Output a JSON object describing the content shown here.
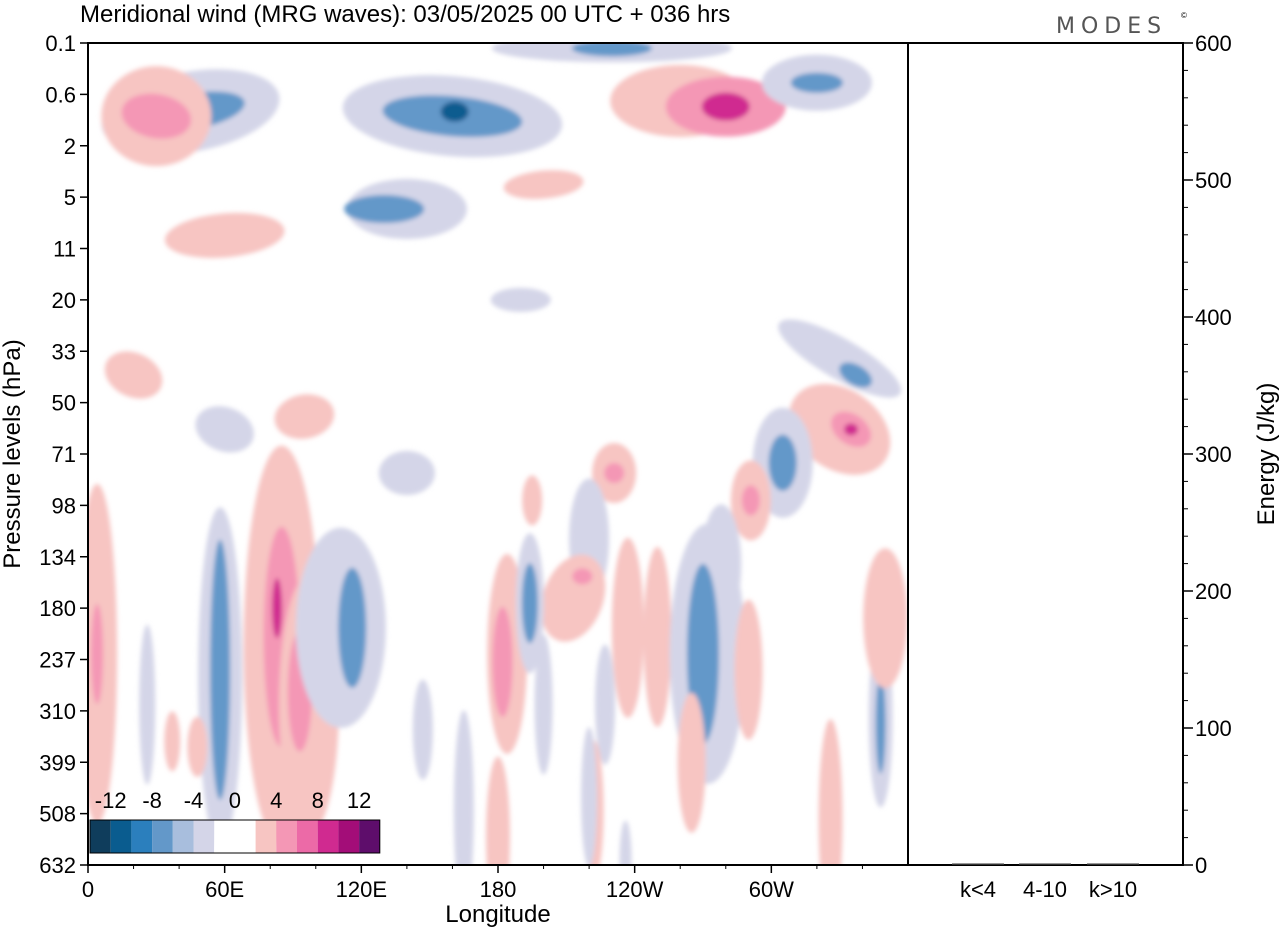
{
  "header": {
    "title": "Meridional wind (MRG waves):  03/05/2025  00 UTC  + 036 hrs",
    "logo": "MODES",
    "logo_mark": "©"
  },
  "chart_data": {
    "type": "heatmap",
    "title": "Meridional wind (MRG waves):  03/05/2025  00 UTC  + 036 hrs",
    "xlabel": "Longitude",
    "ylabel": "Pressure levels (hPa)",
    "x_ticks": [
      "0",
      "60E",
      "120E",
      "180",
      "120W",
      "60W"
    ],
    "x_tick_degrees": [
      0,
      60,
      120,
      180,
      240,
      300
    ],
    "xlim": [
      0,
      360
    ],
    "y_ticks": [
      "0.1",
      "0.6",
      "2",
      "5",
      "11",
      "20",
      "33",
      "50",
      "71",
      "98",
      "134",
      "180",
      "237",
      "310",
      "399",
      "508",
      "632"
    ],
    "colorbar": {
      "labels": [
        "-12",
        "-8",
        "-4",
        "0",
        "4",
        "8",
        "12"
      ],
      "colors": [
        "#0f3d5c",
        "#0a5c8f",
        "#2b7fbd",
        "#6398c9",
        "#a8bedd",
        "#d4d5e8",
        "#ffffff",
        "#ffffff",
        "#f7c5c2",
        "#f497b5",
        "#ec6aa7",
        "#d02a90",
        "#a30d78",
        "#5e0d6b"
      ]
    },
    "contours": [
      {
        "level": -4,
        "lon": 45,
        "p": 0.9
      },
      {
        "level": -8,
        "lon": 160,
        "p": 1.0
      },
      {
        "level": -12,
        "lon": 161,
        "p": 0.9
      },
      {
        "level": -4,
        "lon": 140,
        "p": 6
      },
      {
        "level": -8,
        "lon": 130,
        "p": 6
      },
      {
        "level": -8,
        "lon": 230,
        "p": 0.12
      },
      {
        "level": -4,
        "lon": 320,
        "p": 0.4
      },
      {
        "level": 8,
        "lon": 30,
        "p": 1.0
      },
      {
        "level": 12,
        "lon": 280,
        "p": 0.8
      },
      {
        "level": 4,
        "lon": 260,
        "p": 0.7
      },
      {
        "level": 4,
        "lon": 55,
        "p": 9
      },
      {
        "level": 8,
        "lon": 335,
        "p": 60
      },
      {
        "level": 12,
        "lon": 335,
        "p": 60
      },
      {
        "level": -8,
        "lon": 337,
        "p": 40
      },
      {
        "level": -8,
        "lon": 305,
        "p": 75
      },
      {
        "level": 8,
        "lon": 291,
        "p": 95
      },
      {
        "level": 8,
        "lon": 231,
        "p": 80
      },
      {
        "level": 8,
        "lon": 182,
        "p": 240
      },
      {
        "level": -8,
        "lon": 194,
        "p": 175
      },
      {
        "level": 8,
        "lon": 85,
        "p": 200
      },
      {
        "level": 12,
        "lon": 83,
        "p": 180
      },
      {
        "level": 8,
        "lon": 93,
        "p": 280
      },
      {
        "level": -8,
        "lon": 58,
        "p": 250
      },
      {
        "level": -8,
        "lon": 116,
        "p": 200
      },
      {
        "level": -8,
        "lon": 270,
        "p": 230
      },
      {
        "level": -8,
        "lon": 348,
        "p": 330
      },
      {
        "level": 8,
        "lon": 4,
        "p": 230
      },
      {
        "level": 4,
        "lon": 80,
        "p": 290
      }
    ],
    "energy_panel": {
      "ylabel": "Energy (J/kg)",
      "ylim": [
        0,
        600
      ],
      "y_ticks": [
        0,
        100,
        200,
        300,
        400,
        500,
        600
      ],
      "categories": [
        "k<4",
        "4-10",
        "k>10"
      ],
      "values": [
        0,
        0,
        0
      ]
    }
  }
}
